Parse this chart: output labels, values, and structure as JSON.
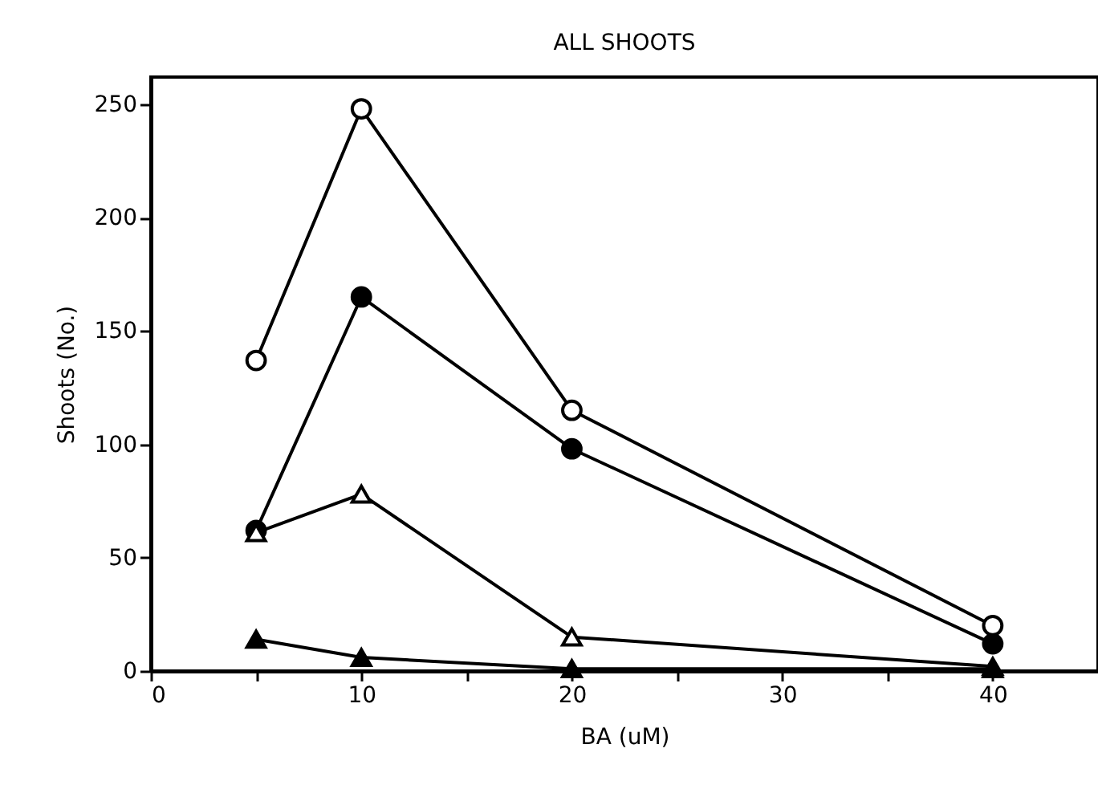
{
  "chart_data": {
    "type": "line",
    "title": "ALL SHOOTS",
    "xlabel": "BA  (uM)",
    "ylabel": "Shoots  (No.)",
    "x": [
      5,
      10,
      20,
      40
    ],
    "series": [
      {
        "color": "#000000",
        "marker": "circle-open",
        "values": [
          137,
          248,
          115,
          20
        ]
      },
      {
        "color": "#000000",
        "marker": "circle",
        "values": [
          62,
          165,
          98,
          12
        ]
      },
      {
        "color": "#000000",
        "marker": "triangle-open",
        "values": [
          61,
          78,
          15,
          2
        ]
      },
      {
        "color": "#000000",
        "marker": "triangle",
        "values": [
          14,
          6,
          1,
          1
        ]
      }
    ],
    "xlim": [
      0,
      45
    ],
    "xticks": [
      0,
      {
        "value": 5,
        "label": null
      },
      10,
      {
        "value": 15,
        "label": null
      },
      20,
      {
        "value": 25,
        "label": null
      },
      30,
      {
        "value": 35,
        "label": null
      },
      40
    ],
    "ylim": [
      0,
      262
    ],
    "yticks": [
      0,
      50,
      100,
      150,
      200,
      250
    ],
    "grid": false,
    "line_style": "solid"
  }
}
